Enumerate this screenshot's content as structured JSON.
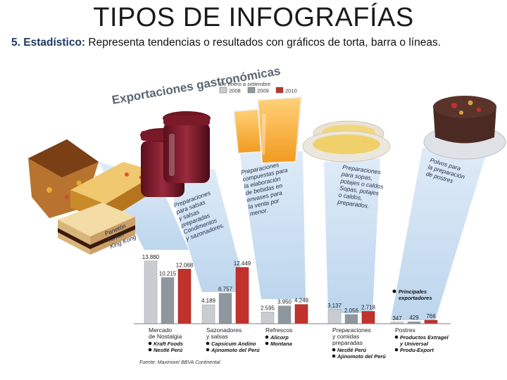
{
  "slide": {
    "title": "TIPOS DE INFOGRAFÍAS",
    "subtitle_lead": "5. Estadístico:",
    "subtitle_text": " Representa tendencias o resultados con gráficos de torta, barra o líneas."
  },
  "colors": {
    "2008": "#c9ccd0",
    "2009": "#8e969e",
    "2010": "#c0322b",
    "beam": "#cfe3f4",
    "heading": "#5b6670"
  },
  "chart_data": {
    "type": "bar",
    "title": "Exportaciones gastronómicas",
    "subtitle": "De enero a setiembre",
    "legend_position": "top",
    "series": [
      {
        "name": "2008",
        "values": [
          13880,
          4189,
          2595,
          3137,
          347
        ]
      },
      {
        "name": "2009",
        "values": [
          10215,
          6757,
          3950,
          2056,
          429
        ]
      },
      {
        "name": "2010",
        "values": [
          12068,
          12449,
          4249,
          2718,
          766
        ]
      }
    ],
    "value_labels": [
      [
        "13.880",
        "10.215",
        "12.068"
      ],
      [
        "4.189",
        "6.757",
        "12.449"
      ],
      [
        "2.595",
        "3.950",
        "4.249"
      ],
      [
        "3.137",
        "2.056",
        "2.718"
      ],
      [
        "347",
        "429",
        "766"
      ]
    ],
    "categories": [
      {
        "name_lines": [
          "Mercado",
          "de Nostalgia"
        ],
        "companies": [
          "Kraft Foods",
          "Nestlé Perú"
        ]
      },
      {
        "name_lines": [
          "Sazonadores",
          "y salsas"
        ],
        "companies": [
          "Capsicum Andino",
          "Ajinomoto del Perú"
        ]
      },
      {
        "name_lines": [
          "Refrescos"
        ],
        "companies": [
          "Alicorp",
          "Montana"
        ]
      },
      {
        "name_lines": [
          "Preparaciones",
          "y comidas",
          "preparadas"
        ],
        "companies": [
          "Nestlé Perú",
          "Ajinomoto del Perú"
        ]
      },
      {
        "name_lines": [
          "Postres"
        ],
        "companies": [
          "Productos Extragel",
          "y Universal",
          "Produ-Export"
        ]
      }
    ],
    "principal_exporters_lines": [
      "Principales",
      "exportadores"
    ],
    "product_descriptions": [
      [
        "Panetón",
        "Turrón",
        "King Kong"
      ],
      [
        "Preparaciones",
        "para salsas",
        "y salsas",
        "preparadas",
        "Condimentos",
        "y sazonadores."
      ],
      [
        "Preparaciones",
        "compuestas para",
        "la elaboración",
        "de bebidas en",
        "envases para",
        "la venta por",
        "menor."
      ],
      [
        "Preparaciones",
        "para sopas,",
        "potajes o caldos",
        "Sopas, potajes",
        "o caldos,",
        "preparados."
      ],
      [
        "Polvos para",
        "la preparación",
        "de postres"
      ]
    ],
    "source": "Fuente: Maximixe/ BBVA Continental"
  }
}
